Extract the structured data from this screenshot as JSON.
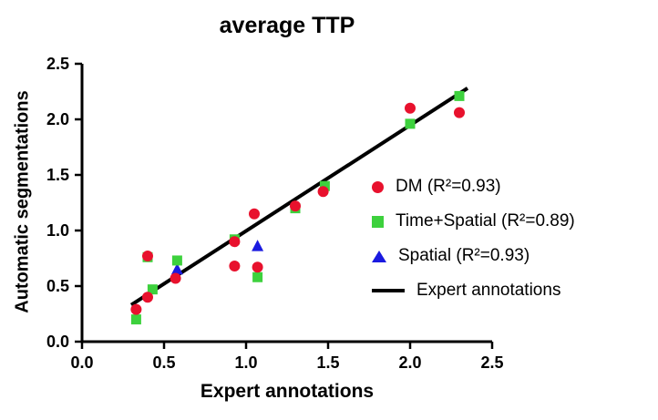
{
  "chart_data": {
    "type": "scatter",
    "title": "average TTP",
    "xlabel": "Expert annotations",
    "ylabel": "Automatic segmentations",
    "xlim": [
      0,
      2.5
    ],
    "ylim": [
      0,
      2.5
    ],
    "xticks": [
      "0.0",
      "0.5",
      "1.0",
      "1.5",
      "2.0",
      "2.5"
    ],
    "yticks": [
      "0.0",
      "0.5",
      "1.0",
      "1.5",
      "2.0",
      "2.5"
    ],
    "grid": false,
    "legend_position": "center-right",
    "series": [
      {
        "name": "DM (R²=0.93)",
        "marker": "circle",
        "color": "#e8112d",
        "points": [
          [
            0.33,
            0.29
          ],
          [
            0.4,
            0.4
          ],
          [
            0.4,
            0.77
          ],
          [
            0.57,
            0.57
          ],
          [
            0.93,
            0.68
          ],
          [
            0.93,
            0.9
          ],
          [
            1.05,
            1.15
          ],
          [
            1.07,
            0.67
          ],
          [
            1.3,
            1.22
          ],
          [
            1.47,
            1.35
          ],
          [
            2.0,
            2.1
          ],
          [
            2.3,
            2.06
          ]
        ]
      },
      {
        "name": "Time+Spatial (R²=0.89)",
        "marker": "square",
        "color": "#3dd13d",
        "points": [
          [
            0.33,
            0.2
          ],
          [
            0.4,
            0.76
          ],
          [
            0.43,
            0.47
          ],
          [
            0.58,
            0.73
          ],
          [
            0.93,
            0.92
          ],
          [
            1.07,
            0.58
          ],
          [
            1.3,
            1.2
          ],
          [
            1.48,
            1.4
          ],
          [
            2.0,
            1.96
          ],
          [
            2.3,
            2.21
          ]
        ]
      },
      {
        "name": "Spatial (R²=0.93)",
        "marker": "triangle",
        "color": "#1a1ae0",
        "points": [
          [
            0.58,
            0.65
          ],
          [
            1.07,
            0.86
          ]
        ]
      },
      {
        "name": "Expert annotations",
        "marker": "line",
        "color": "#000000",
        "line": [
          [
            0.3,
            0.33
          ],
          [
            2.35,
            2.28
          ]
        ]
      }
    ]
  }
}
